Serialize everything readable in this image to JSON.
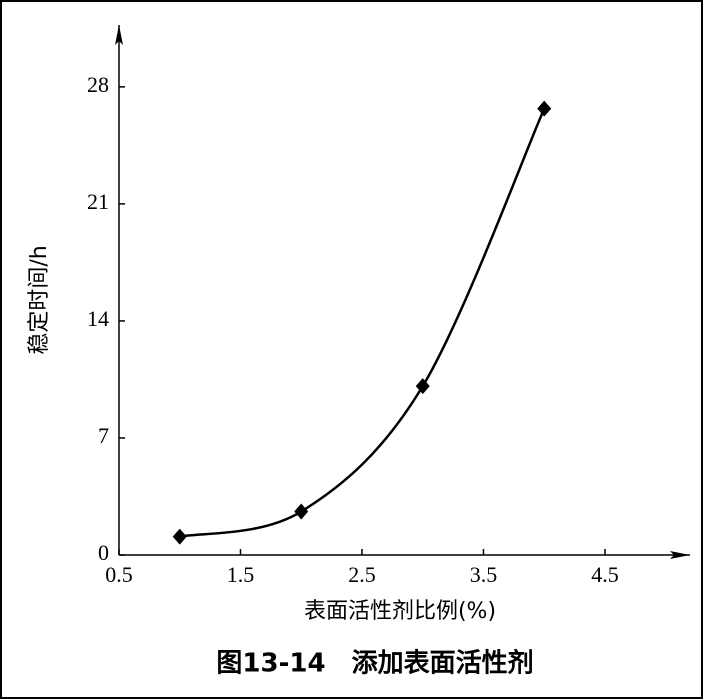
{
  "chart_data": {
    "type": "line",
    "caption": "图13-14　添加表面活性剂",
    "xlabel": "表面活性剂比例(%)",
    "ylabel": "稳定时间/h",
    "x": [
      1,
      2,
      3,
      4
    ],
    "series": [
      {
        "color": "#000000",
        "values": [
          1.1,
          2.6,
          10.1,
          26.7
        ]
      }
    ],
    "xlim": [
      0.5,
      5.2
    ],
    "ylim": [
      0,
      31.7
    ],
    "xticks": [
      0.5,
      1.5,
      2.5,
      3.5,
      4.5
    ],
    "yticks": [
      0,
      7,
      14,
      21,
      28
    ],
    "grid": false
  }
}
